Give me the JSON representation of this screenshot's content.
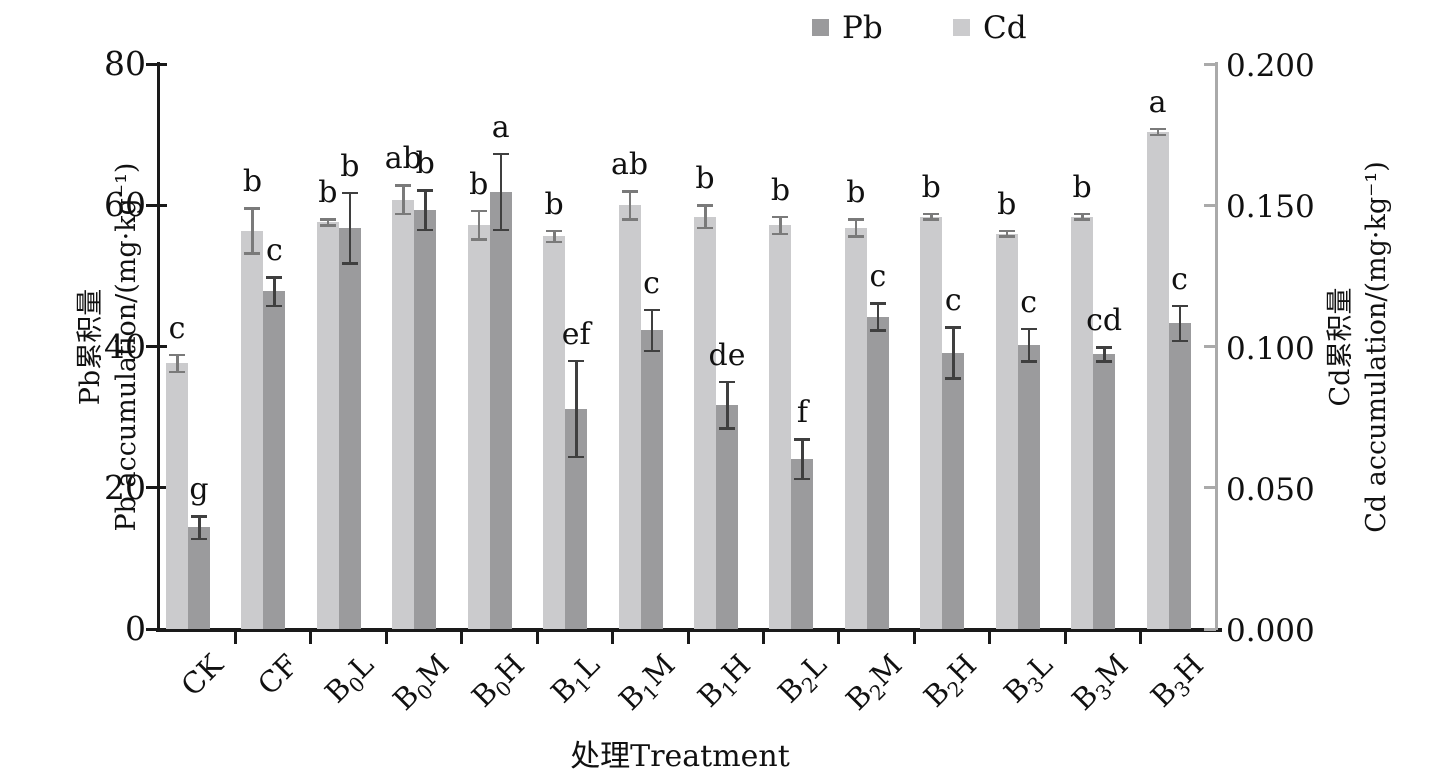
{
  "legend": {
    "items": [
      {
        "label": "Pb",
        "color": "#9a9a9c"
      },
      {
        "label": "Cd",
        "color": "#cbcbcd"
      }
    ]
  },
  "axes": {
    "left": {
      "title_zh": "Pb累积量",
      "title_en": "Pb accumulation/(mg·kg⁻¹)",
      "ticks": [
        "0",
        "20",
        "40",
        "60",
        "80"
      ],
      "max": 80
    },
    "right": {
      "title_zh": "Cd累积量",
      "title_en": "Cd accumulation/(mg·kg⁻¹)",
      "ticks": [
        "0.000",
        "0.050",
        "0.100",
        "0.150",
        "0.200"
      ],
      "max": 0.2
    },
    "x": {
      "title": "处理Treatment"
    }
  },
  "chart_data": {
    "type": "bar",
    "title": "",
    "categories": [
      "CK",
      "CF",
      "B0L",
      "B0M",
      "B0H",
      "B1L",
      "B1M",
      "B1H",
      "B2L",
      "B2M",
      "B2H",
      "B3L",
      "B3M",
      "B3H"
    ],
    "xlabel": "处理Treatment",
    "legend_position": "top",
    "grid": false,
    "left_axis": {
      "label": "Pb累积量 Pb accumulation/(mg·kg⁻¹)",
      "range": [
        0,
        80
      ],
      "tick_step": 20
    },
    "right_axis": {
      "label": "Cd累积量 Cd accumulation/(mg·kg⁻¹)",
      "range": [
        0,
        0.2
      ],
      "tick_step": 0.05
    },
    "series": [
      {
        "name": "Cd",
        "axis": "right",
        "unit": "mg·kg⁻¹",
        "color": "#cbcbcd",
        "error_color": "#7a7a7a",
        "values": [
          0.094,
          0.141,
          0.144,
          0.152,
          0.143,
          0.139,
          0.15,
          0.146,
          0.143,
          0.142,
          0.146,
          0.14,
          0.146,
          0.176
        ],
        "errors": [
          0.003,
          0.008,
          0.001,
          0.005,
          0.005,
          0.002,
          0.005,
          0.004,
          0.003,
          0.003,
          0.001,
          0.001,
          0.001,
          0.001
        ],
        "letters": [
          "c",
          "b",
          "b",
          "ab",
          "b",
          "b",
          "ab",
          "b",
          "b",
          "b",
          "b",
          "b",
          "b",
          "a"
        ]
      },
      {
        "name": "Pb",
        "axis": "left",
        "unit": "mg·kg⁻¹",
        "color": "#9b9b9d",
        "error_color": "#3f3f3f",
        "values": [
          14.4,
          47.8,
          56.8,
          59.3,
          61.9,
          31.2,
          42.3,
          31.7,
          24.1,
          44.2,
          39.1,
          40.2,
          38.9,
          43.3
        ],
        "errors": [
          1.6,
          2.0,
          5.0,
          2.8,
          5.4,
          6.8,
          2.9,
          3.3,
          2.8,
          1.9,
          3.6,
          2.3,
          1.0,
          2.5
        ],
        "letters": [
          "g",
          "c",
          "b",
          "b",
          "a",
          "ef",
          "c",
          "de",
          "f",
          "c",
          "c",
          "c",
          "cd",
          "c"
        ]
      }
    ]
  }
}
